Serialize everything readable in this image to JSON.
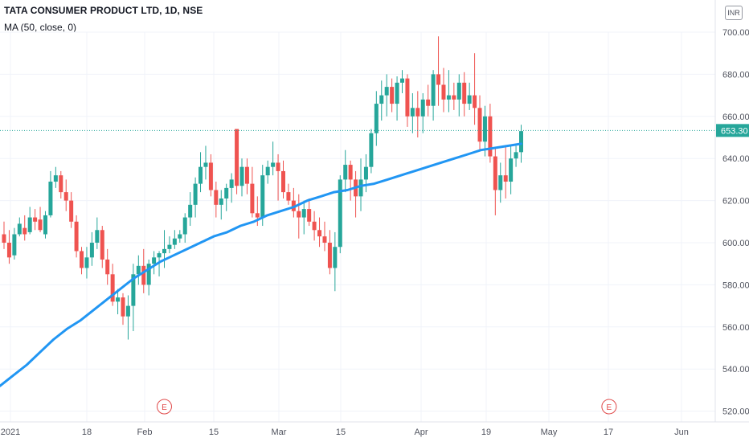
{
  "header": {
    "title": "TATA CONSUMER PRODUCT LTD, 1D, NSE",
    "indicator": "MA (50, close, 0)",
    "currency": "INR"
  },
  "colors": {
    "up": "#26a69a",
    "down": "#ef5350",
    "ma": "#2196f3",
    "last_price": "#26a69a",
    "grid": "#f0f3fa",
    "earnings": "#e04a4a"
  },
  "chart_data": {
    "type": "candlestick",
    "title": "TATA CONSUMER PRODUCT LTD, 1D, NSE",
    "ylim": [
      515,
      712
    ],
    "y_ticks": [
      "700.00",
      "680.00",
      "660.00",
      "640.00",
      "620.00",
      "600.00",
      "580.00",
      "560.00",
      "540.00",
      "520.00"
    ],
    "x_ticks": [
      "2021",
      "18",
      "Feb",
      "15",
      "Mar",
      "15",
      "Apr",
      "19",
      "May",
      "17",
      "Jun"
    ],
    "last_price": "653.30",
    "earnings_markers": [
      {
        "label": "E",
        "index": 31
      },
      {
        "label": "E",
        "index": 117
      }
    ],
    "candles": [
      [
        604,
        610,
        597,
        600
      ],
      [
        600,
        606,
        590,
        593
      ],
      [
        594,
        607,
        592,
        604
      ],
      [
        604,
        612,
        603,
        609
      ],
      [
        607,
        613,
        601,
        604
      ],
      [
        605,
        617,
        604,
        612
      ],
      [
        612,
        616,
        606,
        610
      ],
      [
        611,
        617,
        605,
        606
      ],
      [
        604,
        615,
        602,
        613
      ],
      [
        613,
        634,
        612,
        629
      ],
      [
        629,
        636,
        626,
        632
      ],
      [
        632,
        634,
        621,
        624
      ],
      [
        624,
        630,
        615,
        620
      ],
      [
        620,
        624,
        607,
        610
      ],
      [
        610,
        613,
        593,
        596
      ],
      [
        596,
        598,
        585,
        588
      ],
      [
        588,
        598,
        583,
        593
      ],
      [
        593,
        605,
        589,
        600
      ],
      [
        600,
        612,
        597,
        606
      ],
      [
        606,
        608,
        588,
        592
      ],
      [
        592,
        597,
        580,
        585
      ],
      [
        585,
        590,
        570,
        572
      ],
      [
        572,
        578,
        566,
        574
      ],
      [
        574,
        576,
        561,
        565
      ],
      [
        565,
        575,
        554,
        570
      ],
      [
        570,
        590,
        558,
        585
      ],
      [
        585,
        594,
        580,
        589
      ],
      [
        589,
        597,
        576,
        580
      ],
      [
        580,
        592,
        575,
        590
      ],
      [
        590,
        596,
        585,
        593
      ],
      [
        593,
        596,
        584,
        595
      ],
      [
        595,
        606,
        588,
        597
      ],
      [
        597,
        603,
        595,
        599
      ],
      [
        599,
        606,
        597,
        602
      ],
      [
        602,
        606,
        600,
        604
      ],
      [
        604,
        614,
        600,
        612
      ],
      [
        612,
        624,
        608,
        618
      ],
      [
        618,
        631,
        612,
        628
      ],
      [
        628,
        643,
        624,
        636
      ],
      [
        636,
        646,
        630,
        638
      ],
      [
        638,
        642,
        622,
        625
      ],
      [
        625,
        629,
        612,
        618
      ],
      [
        618,
        625,
        611,
        621
      ],
      [
        621,
        628,
        615,
        626
      ],
      [
        626,
        633,
        619,
        630
      ],
      [
        654,
        654,
        623,
        627
      ],
      [
        627,
        640,
        622,
        636
      ],
      [
        636,
        640,
        623,
        628
      ],
      [
        628,
        636,
        612,
        614
      ],
      [
        614,
        622,
        608,
        612
      ],
      [
        612,
        637,
        608,
        632
      ],
      [
        632,
        639,
        628,
        636
      ],
      [
        636,
        648,
        632,
        638
      ],
      [
        638,
        642,
        620,
        634
      ],
      [
        634,
        639,
        621,
        624
      ],
      [
        624,
        628,
        618,
        620
      ],
      [
        620,
        626,
        612,
        615
      ],
      [
        615,
        623,
        602,
        612
      ],
      [
        612,
        620,
        604,
        616
      ],
      [
        616,
        621,
        608,
        610
      ],
      [
        610,
        615,
        601,
        606
      ],
      [
        606,
        612,
        598,
        603
      ],
      [
        603,
        610,
        596,
        600
      ],
      [
        600,
        606,
        585,
        588
      ],
      [
        588,
        605,
        577,
        598
      ],
      [
        598,
        632,
        595,
        630
      ],
      [
        630,
        644,
        624,
        637
      ],
      [
        637,
        639,
        620,
        630
      ],
      [
        630,
        634,
        612,
        622
      ],
      [
        622,
        640,
        615,
        630
      ],
      [
        630,
        642,
        624,
        636
      ],
      [
        636,
        654,
        633,
        652
      ],
      [
        652,
        672,
        646,
        666
      ],
      [
        666,
        677,
        658,
        670
      ],
      [
        670,
        680,
        660,
        674
      ],
      [
        674,
        678,
        662,
        666
      ],
      [
        666,
        679,
        658,
        676
      ],
      [
        676,
        682,
        671,
        678
      ],
      [
        678,
        680,
        655,
        660
      ],
      [
        660,
        671,
        652,
        664
      ],
      [
        664,
        672,
        650,
        660
      ],
      [
        660,
        671,
        652,
        668
      ],
      [
        668,
        675,
        660,
        665
      ],
      [
        665,
        682,
        658,
        680
      ],
      [
        680,
        698,
        665,
        675
      ],
      [
        675,
        683,
        662,
        668
      ],
      [
        668,
        682,
        662,
        670
      ],
      [
        670,
        676,
        663,
        668
      ],
      [
        668,
        680,
        660,
        676
      ],
      [
        676,
        681,
        660,
        666
      ],
      [
        666,
        676,
        663,
        670
      ],
      [
        670,
        690,
        656,
        664
      ],
      [
        664,
        670,
        644,
        648
      ],
      [
        648,
        665,
        641,
        660
      ],
      [
        660,
        666,
        638,
        641
      ],
      [
        641,
        645,
        613,
        625
      ],
      [
        625,
        638,
        619,
        632
      ],
      [
        632,
        646,
        621,
        629
      ],
      [
        629,
        646,
        623,
        640
      ],
      [
        640,
        646,
        636,
        643
      ],
      [
        643,
        656,
        638,
        653
      ]
    ],
    "ma_series": [
      532,
      537,
      542,
      548,
      554,
      559,
      563,
      568,
      573,
      578,
      583,
      587,
      591,
      594,
      597,
      600,
      603,
      605,
      608,
      610,
      613,
      615,
      617,
      620,
      622,
      624,
      625,
      627,
      628,
      630,
      632,
      634,
      636,
      638,
      640,
      642,
      644,
      645,
      646,
      647
    ]
  }
}
